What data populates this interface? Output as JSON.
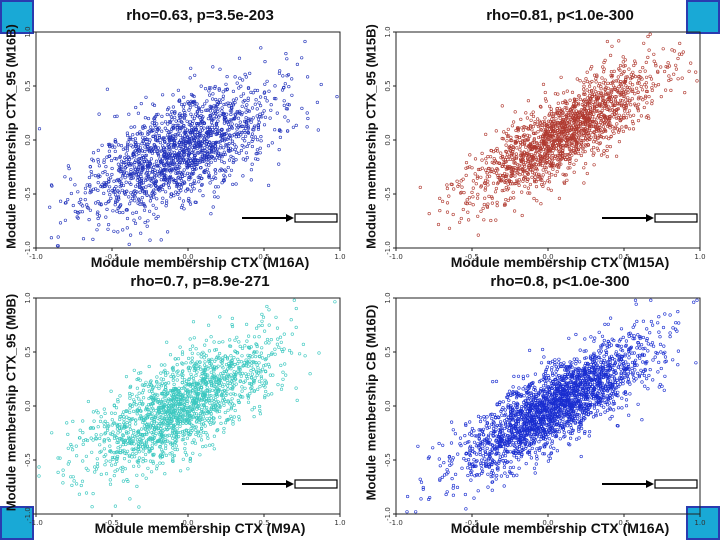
{
  "chart_data": [
    {
      "type": "scatter",
      "title": "rho=0.63, p=3.5e-203",
      "xlabel": "Module membership CTX (M16A)",
      "ylabel": "Module membership CTX_95 (M16B)",
      "xlim": [
        -1.0,
        1.0
      ],
      "ylim": [
        -1.0,
        1.0
      ],
      "xticks": [
        "-1.0",
        "-0.5",
        "0.0",
        "0.5",
        "1.0"
      ],
      "yticks": [
        "-1.0",
        "-0.5",
        "0.0",
        "0.5",
        "1.0"
      ],
      "color": "#2233bb",
      "rho": 0.63,
      "x_center": -0.05,
      "y_center": -0.1,
      "n_points": 1700,
      "seed": 11
    },
    {
      "type": "scatter",
      "title": "rho=0.81, p<1.0e-300",
      "xlabel": "Module membership CTX (M15A)",
      "ylabel": "Module membership CTX_95 (M15B)",
      "xlim": [
        -1.0,
        1.0
      ],
      "ylim": [
        -1.0,
        1.0
      ],
      "xticks": [
        "-1.0",
        "-0.5",
        "0.0",
        "0.5",
        "1.0"
      ],
      "yticks": [
        "-1.0",
        "-0.5",
        "0.0",
        "0.5",
        "1.0"
      ],
      "color": "#b03a30",
      "rho": 0.81,
      "x_center": 0.1,
      "y_center": 0.05,
      "n_points": 1700,
      "seed": 23
    },
    {
      "type": "scatter",
      "title": "rho=0.7, p=8.9e-271",
      "xlabel": "Module membership CTX (M9A)",
      "ylabel": "Module membership CTX_95 (M9B)",
      "xlim": [
        -1.0,
        1.0
      ],
      "ylim": [
        -1.0,
        1.0
      ],
      "xticks": [
        "-1.0",
        "-0.5",
        "0.0",
        "0.5",
        "1.0"
      ],
      "yticks": [
        "-1.0",
        "-0.5",
        "0.0",
        "0.5",
        "1.0"
      ],
      "color": "#3cc8c0",
      "rho": 0.7,
      "x_center": -0.05,
      "y_center": 0.0,
      "n_points": 1700,
      "seed": 37
    },
    {
      "type": "scatter",
      "title": "rho=0.8, p<1.0e-300",
      "xlabel": "Module membership CTX (M16A)",
      "ylabel": "Module membership CB (M16D)",
      "xlim": [
        -1.0,
        1.0
      ],
      "ylim": [
        -1.0,
        1.0
      ],
      "xticks": [
        "-1.0",
        "-0.5",
        "0.0",
        "0.5",
        "1.0"
      ],
      "yticks": [
        "-1.0",
        "-0.5",
        "0.0",
        "0.5",
        "1.0"
      ],
      "color": "#1a2ed0",
      "rho": 0.8,
      "x_center": 0.05,
      "y_center": 0.0,
      "n_points": 2400,
      "seed": 51
    }
  ],
  "corner_color": "#19a9d6",
  "marker_box_color": "#000000"
}
